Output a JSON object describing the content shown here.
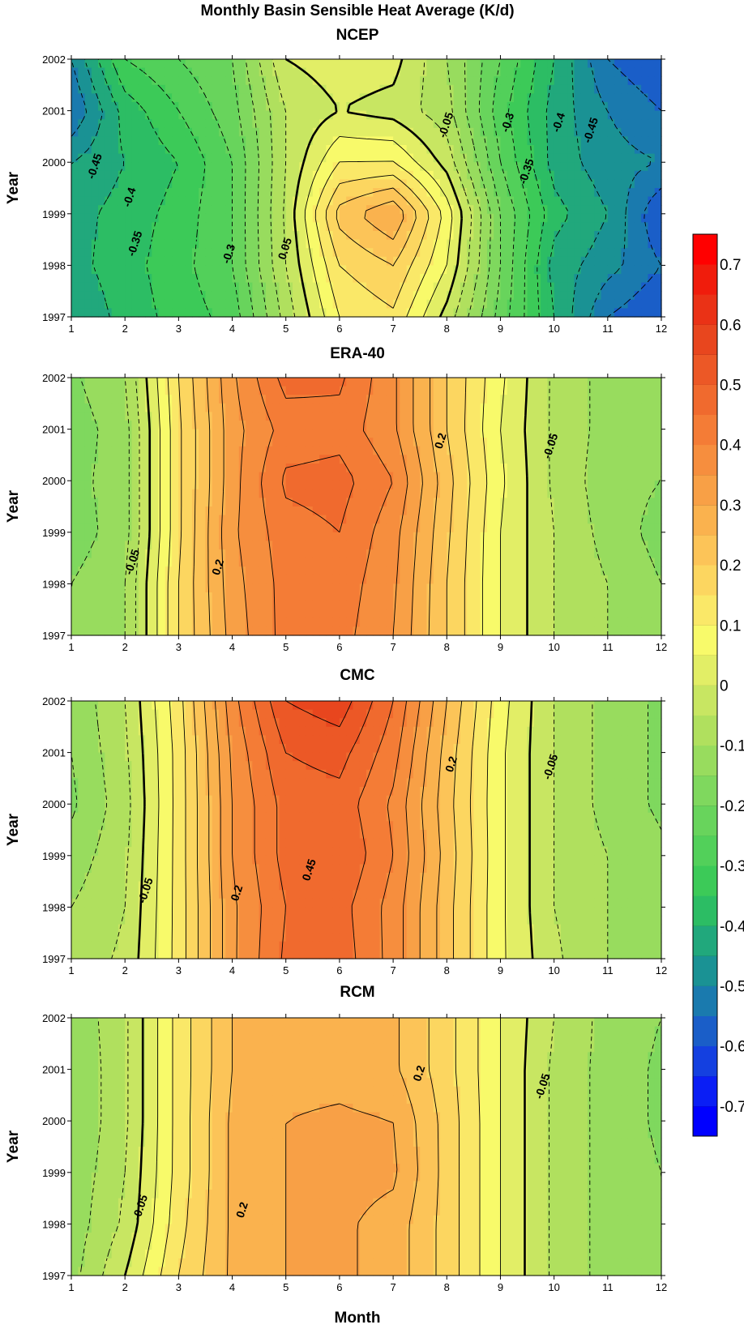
{
  "figure": {
    "title": "Monthly Basin Sensible Heat Average (K/d)"
  },
  "chart_data": [
    {
      "type": "heatmap",
      "title": "NCEP",
      "ylabel": "Year",
      "xlabel": "",
      "x": [
        1,
        2,
        3,
        4,
        5,
        6,
        7,
        8,
        9,
        10,
        11,
        12
      ],
      "y": [
        1997,
        1998,
        1999,
        2000,
        2001,
        2002
      ],
      "xlim": [
        1,
        12
      ],
      "ylim": [
        1997,
        2002
      ],
      "values": [
        [
          -0.45,
          -0.38,
          -0.33,
          -0.28,
          -0.08,
          0.1,
          0.14,
          -0.02,
          -0.22,
          -0.4,
          -0.55,
          -0.6
        ],
        [
          -0.42,
          -0.37,
          -0.32,
          -0.25,
          -0.05,
          0.15,
          0.2,
          0.05,
          -0.2,
          -0.42,
          -0.48,
          -0.55
        ],
        [
          -0.42,
          -0.38,
          -0.33,
          -0.25,
          -0.04,
          0.22,
          0.3,
          0.08,
          -0.2,
          -0.38,
          -0.45,
          -0.6
        ],
        [
          -0.45,
          -0.4,
          -0.35,
          -0.25,
          -0.05,
          0.1,
          0.1,
          -0.02,
          -0.25,
          -0.42,
          -0.48,
          -0.5
        ],
        [
          -0.55,
          -0.38,
          -0.3,
          -0.22,
          -0.05,
          0.0,
          -0.02,
          -0.08,
          -0.28,
          -0.42,
          -0.5,
          -0.55
        ],
        [
          -0.5,
          -0.3,
          -0.25,
          -0.2,
          0.0,
          0.03,
          0.02,
          -0.1,
          -0.25,
          -0.4,
          -0.55,
          -0.6
        ]
      ],
      "contour_labels": [
        {
          "text": "-0.45",
          "x": 1.5,
          "y": 1999.9
        },
        {
          "text": "-0.4",
          "x": 2.15,
          "y": 1999.3
        },
        {
          "text": "-0.35",
          "x": 2.25,
          "y": 1998.4
        },
        {
          "text": "-0.3",
          "x": 4.0,
          "y": 1998.2
        },
        {
          "text": "0.05",
          "x": 5.05,
          "y": 1998.3
        },
        {
          "text": "-0.05",
          "x": 8.05,
          "y": 2000.7
        },
        {
          "text": "-0.3",
          "x": 9.2,
          "y": 2000.75
        },
        {
          "text": "-0.35",
          "x": 9.55,
          "y": 1999.8
        },
        {
          "text": "-0.4",
          "x": 10.15,
          "y": 2000.75
        },
        {
          "text": "-0.45",
          "x": 10.75,
          "y": 2000.6
        }
      ]
    },
    {
      "type": "heatmap",
      "title": "ERA-40",
      "ylabel": "Year",
      "xlabel": "",
      "x": [
        1,
        2,
        3,
        4,
        5,
        6,
        7,
        8,
        9,
        10,
        11,
        12
      ],
      "y": [
        1997,
        1998,
        1999,
        2000,
        2001,
        2002
      ],
      "xlim": [
        1,
        12
      ],
      "ylim": [
        1997,
        2002
      ],
      "values": [
        [
          -0.15,
          -0.1,
          0.15,
          0.32,
          0.42,
          0.42,
          0.35,
          0.2,
          0.05,
          -0.05,
          -0.1,
          -0.12
        ],
        [
          -0.15,
          -0.1,
          0.15,
          0.33,
          0.42,
          0.43,
          0.36,
          0.2,
          0.05,
          -0.05,
          -0.1,
          -0.15
        ],
        [
          -0.18,
          -0.12,
          0.14,
          0.34,
          0.43,
          0.45,
          0.37,
          0.21,
          0.05,
          -0.05,
          -0.12,
          -0.17
        ],
        [
          -0.17,
          -0.12,
          0.14,
          0.33,
          0.46,
          0.47,
          0.4,
          0.22,
          0.06,
          -0.06,
          -0.13,
          -0.15
        ],
        [
          -0.18,
          -0.12,
          0.14,
          0.33,
          0.42,
          0.43,
          0.36,
          0.2,
          0.05,
          -0.06,
          -0.12,
          -0.15
        ],
        [
          -0.16,
          -0.1,
          0.15,
          0.34,
          0.47,
          0.46,
          0.36,
          0.2,
          0.06,
          -0.06,
          -0.12,
          -0.15
        ]
      ],
      "contour_labels": [
        {
          "text": "-0.05",
          "x": 2.2,
          "y": 1998.4
        },
        {
          "text": "0.2",
          "x": 3.8,
          "y": 1998.3
        },
        {
          "text": "0.2",
          "x": 7.95,
          "y": 2000.75
        },
        {
          "text": "-0.05",
          "x": 10.0,
          "y": 2000.65
        }
      ]
    },
    {
      "type": "heatmap",
      "title": "CMC",
      "ylabel": "Year",
      "xlabel": "",
      "x": [
        1,
        2,
        3,
        4,
        5,
        6,
        7,
        8,
        9,
        10,
        11,
        12
      ],
      "y": [
        1997,
        1998,
        1999,
        2000,
        2001,
        2002
      ],
      "xlim": [
        1,
        12
      ],
      "ylim": [
        1997,
        2002
      ],
      "values": [
        [
          -0.08,
          -0.04,
          0.12,
          0.34,
          0.46,
          0.48,
          0.38,
          0.22,
          0.06,
          -0.04,
          -0.1,
          -0.14
        ],
        [
          -0.1,
          -0.05,
          0.12,
          0.34,
          0.45,
          0.47,
          0.38,
          0.22,
          0.06,
          -0.05,
          -0.1,
          -0.14
        ],
        [
          -0.13,
          -0.06,
          0.12,
          0.35,
          0.47,
          0.5,
          0.4,
          0.23,
          0.06,
          -0.05,
          -0.1,
          -0.14
        ],
        [
          -0.16,
          -0.07,
          0.12,
          0.35,
          0.47,
          0.48,
          0.39,
          0.22,
          0.06,
          -0.05,
          -0.12,
          -0.16
        ],
        [
          -0.15,
          -0.06,
          0.12,
          0.36,
          0.5,
          0.52,
          0.42,
          0.23,
          0.06,
          -0.05,
          -0.12,
          -0.16
        ],
        [
          -0.14,
          -0.05,
          0.13,
          0.38,
          0.55,
          0.58,
          0.45,
          0.25,
          0.07,
          -0.05,
          -0.12,
          -0.16
        ]
      ],
      "contour_labels": [
        {
          "text": "-0.05",
          "x": 2.45,
          "y": 1998.3
        },
        {
          "text": "0.2",
          "x": 4.15,
          "y": 1998.25
        },
        {
          "text": "0.45",
          "x": 5.5,
          "y": 1998.7
        },
        {
          "text": "0.2",
          "x": 8.15,
          "y": 2000.75
        },
        {
          "text": "-0.05",
          "x": 10.0,
          "y": 2000.7
        }
      ]
    },
    {
      "type": "heatmap",
      "title": "RCM",
      "ylabel": "Year",
      "xlabel": "Month",
      "x": [
        1,
        2,
        3,
        4,
        5,
        6,
        7,
        8,
        9,
        10,
        11,
        12
      ],
      "y": [
        1997,
        1998,
        1999,
        2000,
        2001,
        2002
      ],
      "xlim": [
        1,
        12
      ],
      "ylim": [
        1997,
        2002
      ],
      "values": [
        [
          -0.12,
          0.0,
          0.15,
          0.26,
          0.3,
          0.31,
          0.28,
          0.18,
          0.05,
          -0.06,
          -0.12,
          -0.15
        ],
        [
          -0.13,
          -0.04,
          0.13,
          0.26,
          0.3,
          0.31,
          0.28,
          0.18,
          0.05,
          -0.06,
          -0.12,
          -0.15
        ],
        [
          -0.14,
          -0.05,
          0.12,
          0.26,
          0.3,
          0.32,
          0.31,
          0.18,
          0.05,
          -0.06,
          -0.12,
          -0.15
        ],
        [
          -0.15,
          -0.06,
          0.12,
          0.26,
          0.3,
          0.31,
          0.3,
          0.18,
          0.05,
          -0.06,
          -0.12,
          -0.16
        ],
        [
          -0.15,
          -0.06,
          0.12,
          0.25,
          0.28,
          0.28,
          0.26,
          0.17,
          0.05,
          -0.06,
          -0.12,
          -0.16
        ],
        [
          -0.14,
          -0.06,
          0.12,
          0.25,
          0.3,
          0.28,
          0.26,
          0.17,
          0.05,
          -0.05,
          -0.12,
          -0.15
        ]
      ],
      "contour_labels": [
        {
          "text": "-0.05",
          "x": 2.35,
          "y": 1998.3
        },
        {
          "text": "0.2",
          "x": 4.25,
          "y": 1998.25
        },
        {
          "text": "0.2",
          "x": 7.55,
          "y": 2000.9
        },
        {
          "text": "-0.05",
          "x": 9.85,
          "y": 2000.65
        }
      ]
    }
  ],
  "colorbar": {
    "ticks": [
      "0.7",
      "0.6",
      "0.5",
      "0.4",
      "0.3",
      "0.2",
      "0.1",
      "0",
      "-0.1",
      "-0.2",
      "-0.3",
      "-0.4",
      "-0.5",
      "-0.6",
      "-0.7"
    ],
    "levels": [
      -0.75,
      -0.7,
      -0.65,
      -0.6,
      -0.55,
      -0.5,
      -0.45,
      -0.4,
      -0.35,
      -0.3,
      -0.25,
      -0.2,
      -0.15,
      -0.1,
      -0.05,
      0,
      0.05,
      0.1,
      0.15,
      0.2,
      0.25,
      0.3,
      0.35,
      0.4,
      0.45,
      0.5,
      0.55,
      0.6,
      0.65,
      0.7,
      0.75
    ],
    "colors": [
      "#0000ff",
      "#0a1ef5",
      "#1440e0",
      "#1a5ec8",
      "#1a7aae",
      "#1a9294",
      "#21a87c",
      "#2cbd64",
      "#3cca58",
      "#52d05a",
      "#68d45c",
      "#7fd85e",
      "#98dc5e",
      "#b0e05e",
      "#c8e662",
      "#e2ee66",
      "#f8fa6a",
      "#fae868",
      "#fcd660",
      "#fcc458",
      "#fab24e",
      "#f8a046",
      "#f68e3e",
      "#f47c36",
      "#f06a2e",
      "#ec5826",
      "#e8461e",
      "#ea3216",
      "#f01c0c",
      "#ff0000"
    ]
  }
}
